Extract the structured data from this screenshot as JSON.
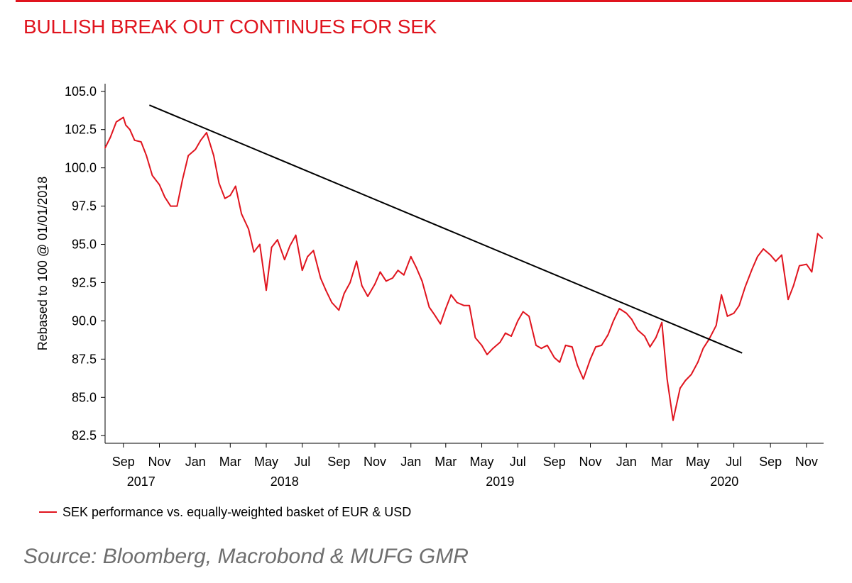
{
  "header": {
    "title": "BULLISH BREAK OUT CONTINUES FOR SEK"
  },
  "footer": {
    "source": "Source: Bloomberg, Macrobond & MUFG GMR"
  },
  "colors": {
    "accent": "#e0141e",
    "series": "#e0141e",
    "trendline": "#000000",
    "source_text": "#6e6e6e"
  },
  "chart_data": {
    "type": "line",
    "title": "BULLISH BREAK OUT CONTINUES FOR SEK",
    "xlabel": "",
    "ylabel": "Rebased to 100 @ 01/01/2018",
    "ylim": [
      82.0,
      105.5
    ],
    "xlim": [
      "2017-08-01",
      "2020-11-30"
    ],
    "grid": false,
    "legend_position": "bottom-left",
    "y_ticks": [
      "82.5",
      "85.0",
      "87.5",
      "90.0",
      "92.5",
      "95.0",
      "97.5",
      "100.0",
      "102.5",
      "105.0"
    ],
    "x_ticks": [
      {
        "date": "2017-09-01",
        "label": "Sep"
      },
      {
        "date": "2017-11-01",
        "label": "Nov"
      },
      {
        "date": "2018-01-01",
        "label": "Jan"
      },
      {
        "date": "2018-03-01",
        "label": "Mar"
      },
      {
        "date": "2018-05-01",
        "label": "May"
      },
      {
        "date": "2018-07-01",
        "label": "Jul"
      },
      {
        "date": "2018-09-01",
        "label": "Sep"
      },
      {
        "date": "2018-11-01",
        "label": "Nov"
      },
      {
        "date": "2019-01-01",
        "label": "Jan"
      },
      {
        "date": "2019-03-01",
        "label": "Mar"
      },
      {
        "date": "2019-05-01",
        "label": "May"
      },
      {
        "date": "2019-07-01",
        "label": "Jul"
      },
      {
        "date": "2019-09-01",
        "label": "Sep"
      },
      {
        "date": "2019-11-01",
        "label": "Nov"
      },
      {
        "date": "2020-01-01",
        "label": "Jan"
      },
      {
        "date": "2020-03-01",
        "label": "Mar"
      },
      {
        "date": "2020-05-01",
        "label": "May"
      },
      {
        "date": "2020-07-01",
        "label": "Jul"
      },
      {
        "date": "2020-09-01",
        "label": "Sep"
      },
      {
        "date": "2020-11-01",
        "label": "Nov"
      }
    ],
    "year_labels": [
      {
        "date": "2017-10-01",
        "label": "2017"
      },
      {
        "date": "2018-06-01",
        "label": "2018"
      },
      {
        "date": "2019-06-01",
        "label": "2019"
      },
      {
        "date": "2020-06-15",
        "label": "2020"
      }
    ],
    "series": [
      {
        "name": "SEK performance vs. equally-weighted basket of EUR & USD",
        "x": [
          "2017-08-01",
          "2017-08-10",
          "2017-08-20",
          "2017-09-01",
          "2017-09-05",
          "2017-09-12",
          "2017-09-20",
          "2017-10-01",
          "2017-10-10",
          "2017-10-20",
          "2017-11-01",
          "2017-11-10",
          "2017-11-20",
          "2017-12-01",
          "2017-12-10",
          "2017-12-20",
          "2018-01-01",
          "2018-01-10",
          "2018-01-20",
          "2018-02-01",
          "2018-02-10",
          "2018-02-20",
          "2018-03-01",
          "2018-03-10",
          "2018-03-20",
          "2018-04-01",
          "2018-04-10",
          "2018-04-20",
          "2018-05-01",
          "2018-05-10",
          "2018-05-20",
          "2018-06-01",
          "2018-06-10",
          "2018-06-20",
          "2018-07-01",
          "2018-07-10",
          "2018-07-20",
          "2018-08-01",
          "2018-08-10",
          "2018-08-20",
          "2018-09-01",
          "2018-09-10",
          "2018-09-20",
          "2018-10-01",
          "2018-10-10",
          "2018-10-20",
          "2018-11-01",
          "2018-11-10",
          "2018-11-20",
          "2018-12-01",
          "2018-12-10",
          "2018-12-20",
          "2019-01-01",
          "2019-01-10",
          "2019-01-20",
          "2019-02-01",
          "2019-02-10",
          "2019-02-20",
          "2019-03-01",
          "2019-03-10",
          "2019-03-20",
          "2019-04-01",
          "2019-04-10",
          "2019-04-20",
          "2019-05-01",
          "2019-05-10",
          "2019-05-20",
          "2019-06-01",
          "2019-06-10",
          "2019-06-20",
          "2019-07-01",
          "2019-07-10",
          "2019-07-20",
          "2019-08-01",
          "2019-08-10",
          "2019-08-20",
          "2019-09-01",
          "2019-09-10",
          "2019-09-20",
          "2019-10-01",
          "2019-10-10",
          "2019-10-20",
          "2019-11-01",
          "2019-11-10",
          "2019-11-20",
          "2019-12-01",
          "2019-12-10",
          "2019-12-20",
          "2020-01-01",
          "2020-01-10",
          "2020-01-20",
          "2020-02-01",
          "2020-02-10",
          "2020-02-20",
          "2020-03-01",
          "2020-03-10",
          "2020-03-20",
          "2020-04-01",
          "2020-04-10",
          "2020-04-20",
          "2020-05-01",
          "2020-05-10",
          "2020-05-20",
          "2020-06-01",
          "2020-06-10",
          "2020-06-20",
          "2020-07-01",
          "2020-07-10",
          "2020-07-20",
          "2020-08-01",
          "2020-08-10",
          "2020-08-20",
          "2020-09-01",
          "2020-09-10",
          "2020-09-20",
          "2020-10-01",
          "2020-10-10",
          "2020-10-20",
          "2020-11-01",
          "2020-11-10",
          "2020-11-20",
          "2020-11-28"
        ],
        "y": [
          101.3,
          102.0,
          103.0,
          103.3,
          102.8,
          102.5,
          101.8,
          101.7,
          100.8,
          99.5,
          98.9,
          98.1,
          97.5,
          97.5,
          99.2,
          100.8,
          101.2,
          101.8,
          102.3,
          100.8,
          99.0,
          98.0,
          98.2,
          98.8,
          97.0,
          96.0,
          94.5,
          95.0,
          92.0,
          94.8,
          95.3,
          94.0,
          94.9,
          95.6,
          93.3,
          94.2,
          94.6,
          92.8,
          92.0,
          91.2,
          90.7,
          91.8,
          92.5,
          93.9,
          92.3,
          91.6,
          92.4,
          93.2,
          92.6,
          92.8,
          93.3,
          93.0,
          94.2,
          93.5,
          92.6,
          90.9,
          90.4,
          89.8,
          90.8,
          91.7,
          91.2,
          91.0,
          91.0,
          88.9,
          88.4,
          87.8,
          88.2,
          88.6,
          89.2,
          89.0,
          90.0,
          90.6,
          90.3,
          88.4,
          88.2,
          88.4,
          87.6,
          87.3,
          88.4,
          88.3,
          87.1,
          86.2,
          87.5,
          88.3,
          88.4,
          89.1,
          90.0,
          90.8,
          90.5,
          90.1,
          89.4,
          89.0,
          88.3,
          88.9,
          89.9,
          86.2,
          83.5,
          85.6,
          86.1,
          86.5,
          87.3,
          88.2,
          88.8,
          89.7,
          91.7,
          90.3,
          90.5,
          91.0,
          92.2,
          93.4,
          94.2,
          94.7,
          94.3,
          93.9,
          94.3,
          91.4,
          92.3,
          93.6,
          93.7,
          93.2,
          95.7,
          95.4
        ]
      },
      {
        "name": "",
        "x": [
          "2017-10-15",
          "2020-07-15"
        ],
        "y": [
          104.1,
          87.9
        ]
      }
    ]
  }
}
